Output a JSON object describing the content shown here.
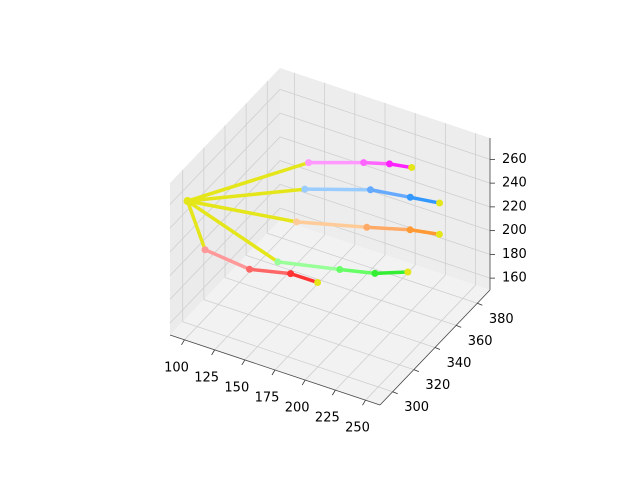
{
  "chart_data": {
    "type": "line3d",
    "xlim": [
      88,
      262
    ],
    "ylim": [
      288,
      392
    ],
    "zlim": [
      150,
      278
    ],
    "xticks": [
      100,
      125,
      150,
      175,
      200,
      225,
      250
    ],
    "yticks": [
      300,
      320,
      340,
      360,
      380
    ],
    "zticks": [
      160,
      180,
      200,
      220,
      240,
      260
    ],
    "grid": true,
    "palm_color": "#e5e619",
    "wrist": {
      "x": 92,
      "y": 300,
      "z": 253
    },
    "series": [
      {
        "colors": [
          "#ff9999",
          "#ff6666",
          "#ff3333"
        ],
        "x": [
          103,
          132,
          159,
          177
        ],
        "y": [
          304,
          313,
          321,
          326
        ],
        "z": [
          212,
          197,
          195,
          189
        ]
      },
      {
        "colors": [
          "#99ff99",
          "#66ff66",
          "#33ee33"
        ],
        "x": [
          151,
          191,
          214,
          236
        ],
        "y": [
          318,
          331,
          338,
          344
        ],
        "z": [
          205,
          200,
          198,
          201
        ]
      },
      {
        "colors": [
          "#ffcc99",
          "#ffaa66",
          "#ff9933"
        ],
        "x": [
          163,
          209,
          237,
          256
        ],
        "y": [
          322,
          336,
          345,
          351
        ],
        "z": [
          239,
          237,
          236,
          233
        ]
      },
      {
        "colors": [
          "#99ccff",
          "#66aaff",
          "#3399ff"
        ],
        "x": [
          155,
          198,
          224,
          243
        ],
        "y": [
          339,
          352,
          360,
          366
        ],
        "z": [
          248,
          250,
          245,
          241
        ]
      },
      {
        "colors": [
          "#ff99ff",
          "#ff66ff",
          "#ff22ff"
        ],
        "x": [
          145,
          181,
          198,
          212
        ],
        "y": [
          354,
          365,
          370,
          375
        ],
        "z": [
          253,
          255,
          255,
          252
        ]
      }
    ]
  }
}
